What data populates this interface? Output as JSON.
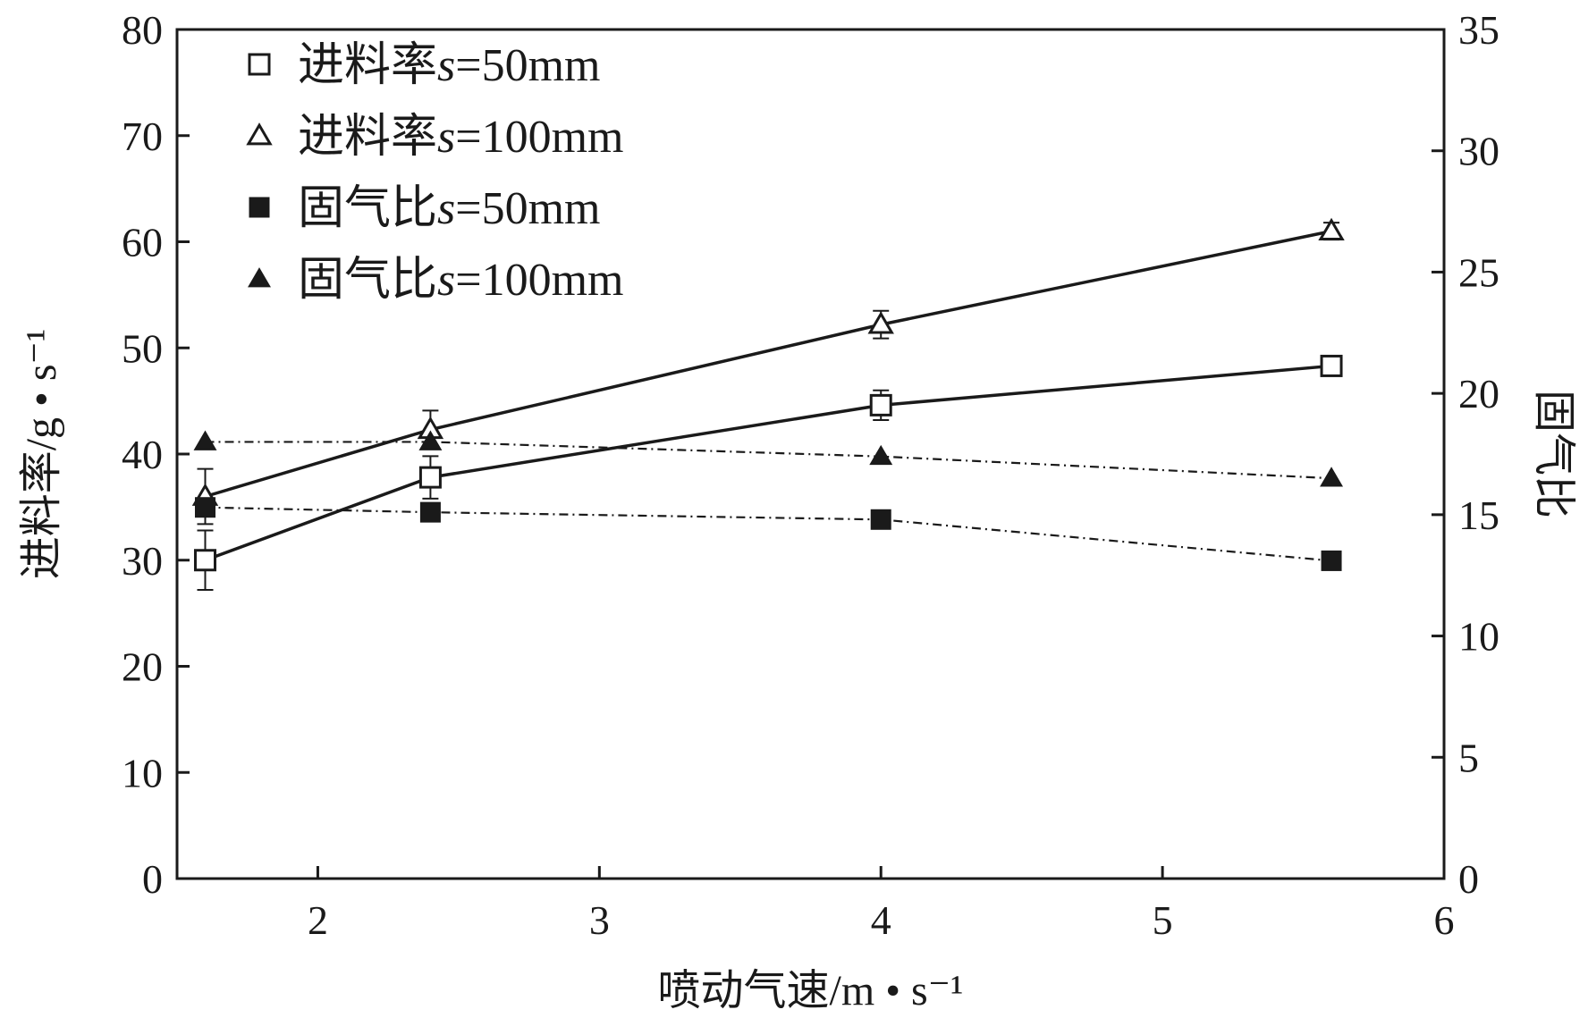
{
  "chart_data": {
    "type": "line",
    "xlabel": "喷动气速/m • s⁻¹",
    "ylabel_left": "进料率/g • s⁻¹",
    "ylabel_right": "固气比",
    "xlim": [
      1.5,
      6
    ],
    "ylim_left": [
      0,
      80
    ],
    "ylim_right": [
      0,
      35
    ],
    "x_ticks": [
      "2",
      "3",
      "4",
      "5",
      "6"
    ],
    "y_left_ticks": [
      "0",
      "10",
      "20",
      "30",
      "40",
      "50",
      "60",
      "70",
      "80"
    ],
    "y_right_ticks": [
      "0",
      "5",
      "10",
      "15",
      "20",
      "25",
      "30",
      "35"
    ],
    "grid": false,
    "legend_position": "top-left",
    "series": [
      {
        "name": "进料率s=50mm",
        "axis": "left",
        "marker": "square-open",
        "line": "solid",
        "x": [
          1.6,
          2.4,
          4.0,
          5.6
        ],
        "y": [
          30.0,
          37.8,
          44.6,
          48.3
        ],
        "err": [
          2.8,
          2.0,
          1.4,
          0.9
        ]
      },
      {
        "name": "进料率s=100mm",
        "axis": "left",
        "marker": "triangle-open",
        "line": "solid",
        "x": [
          1.6,
          2.4,
          4.0,
          5.6
        ],
        "y": [
          36.0,
          42.3,
          52.2,
          61.0
        ],
        "err": [
          2.6,
          1.8,
          1.3,
          0.8
        ]
      },
      {
        "name": "固气比s=50mm",
        "axis": "right",
        "marker": "square-filled",
        "line": "dashdot",
        "x": [
          1.6,
          2.4,
          4.0,
          5.6
        ],
        "y": [
          15.3,
          15.1,
          14.8,
          13.1
        ]
      },
      {
        "name": "固气比s=100mm",
        "axis": "right",
        "marker": "triangle-filled",
        "line": "dashdot",
        "x": [
          1.6,
          2.4,
          4.0,
          5.6
        ],
        "y": [
          18.0,
          18.0,
          17.4,
          16.5
        ]
      }
    ]
  },
  "legend": [
    {
      "prefix": "进料率",
      "italic": "s",
      "suffix": "=50mm"
    },
    {
      "prefix": "进料率",
      "italic": "s",
      "suffix": "=100mm"
    },
    {
      "prefix": "固气比",
      "italic": "s",
      "suffix": "=50mm"
    },
    {
      "prefix": "固气比",
      "italic": "s",
      "suffix": "=100mm"
    }
  ]
}
